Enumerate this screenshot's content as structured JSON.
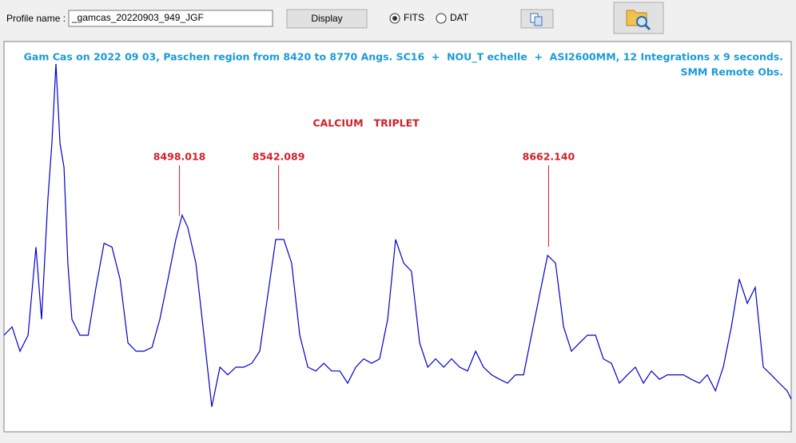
{
  "toolbar": {
    "profile_label": "Profile name :",
    "profile_name": "_gamcas_20220903_949_JGF",
    "display_button": "Display",
    "formats": [
      "FITS",
      "DAT"
    ],
    "selected_format": 0
  },
  "chart_data": {
    "type": "line",
    "title": "Gam Cas on 2022 09 03, Paschen region from 8420 to 8770 Angs. SC16  +  NOU_T echelle  +  ASI2600MM, 12 Integrations x 9 seconds.",
    "subtitle": "SMM Remote Obs.",
    "annotation": "CALCIUM   TRIPLET",
    "markers": [
      8498.018,
      8542.089,
      {
        "value": 8662.14,
        "label": "8662.140"
      }
    ],
    "xlim": [
      8420,
      8770
    ],
    "ylim": [
      0,
      6.1
    ],
    "x": [
      8420,
      8423.6,
      8427.1,
      8430.7,
      8434.2,
      8436.7,
      8439.5,
      8441.3,
      8443.1,
      8444.9,
      8446.7,
      8448.4,
      8450.2,
      8453.8,
      8457.4,
      8460.9,
      8464.5,
      8468.0,
      8471.6,
      8475.1,
      8478.7,
      8482.2,
      8485.8,
      8489.3,
      8492.9,
      8496.4,
      8499.2,
      8501.7,
      8505.3,
      8508.9,
      8512.4,
      8516.0,
      8519.5,
      8523.1,
      8526.6,
      8530.2,
      8533.7,
      8537.3,
      8540.8,
      8544.4,
      8547.9,
      8551.5,
      8555.1,
      8558.6,
      8562.2,
      8565.7,
      8569.3,
      8572.8,
      8576.4,
      8579.9,
      8583.5,
      8587.0,
      8590.6,
      8594.1,
      8597.7,
      8601.2,
      8604.8,
      8608.4,
      8611.9,
      8615.5,
      8619.0,
      8622.6,
      8626.1,
      8629.7,
      8633.2,
      8636.8,
      8640.3,
      8643.9,
      8647.4,
      8651.0,
      8654.5,
      8658.1,
      8661.7,
      8665.2,
      8668.8,
      8672.3,
      8675.9,
      8679.4,
      8683.0,
      8686.5,
      8690.1,
      8693.6,
      8697.2,
      8700.7,
      8704.3,
      8707.9,
      8711.4,
      8715.0,
      8718.5,
      8722.1,
      8725.6,
      8729.2,
      8732.7,
      8736.3,
      8739.8,
      8743.4,
      8746.9,
      8750.5,
      8754.0,
      8757.6,
      8761.1,
      8764.7,
      8768.2,
      8770
    ],
    "series": [
      {
        "color": "#0000cc",
        "values": [
          1.5,
          1.63,
          1.25,
          1.5,
          2.88,
          1.75,
          3.63,
          4.5,
          5.75,
          4.5,
          4.13,
          2.63,
          1.75,
          1.5,
          1.5,
          2.25,
          2.94,
          2.88,
          2.38,
          1.38,
          1.25,
          1.25,
          1.31,
          1.75,
          2.38,
          3,
          3.38,
          3.19,
          2.63,
          1.5,
          0.38,
          1,
          0.88,
          1,
          1,
          1.06,
          1.25,
          2.13,
          3,
          3,
          2.63,
          1.5,
          1,
          0.94,
          1.06,
          0.94,
          0.94,
          0.75,
          1,
          1.13,
          1.06,
          1.13,
          1.75,
          3,
          2.63,
          2.5,
          1.38,
          1,
          1.13,
          1,
          1.13,
          1,
          0.94,
          1.25,
          1,
          0.88,
          0.81,
          0.75,
          0.88,
          0.88,
          1.5,
          2.13,
          2.75,
          2.63,
          1.63,
          1.25,
          1.38,
          1.5,
          1.5,
          1.13,
          1.06,
          0.75,
          0.88,
          1,
          0.75,
          0.94,
          0.81,
          0.88,
          0.88,
          0.88,
          0.81,
          0.75,
          0.88,
          0.63,
          1,
          1.63,
          2.38,
          2,
          2.25,
          1,
          0.88,
          0.75,
          0.63,
          0.5
        ]
      }
    ],
    "title_color": "#1a9bd7",
    "annotation_color": "#d0202a"
  }
}
